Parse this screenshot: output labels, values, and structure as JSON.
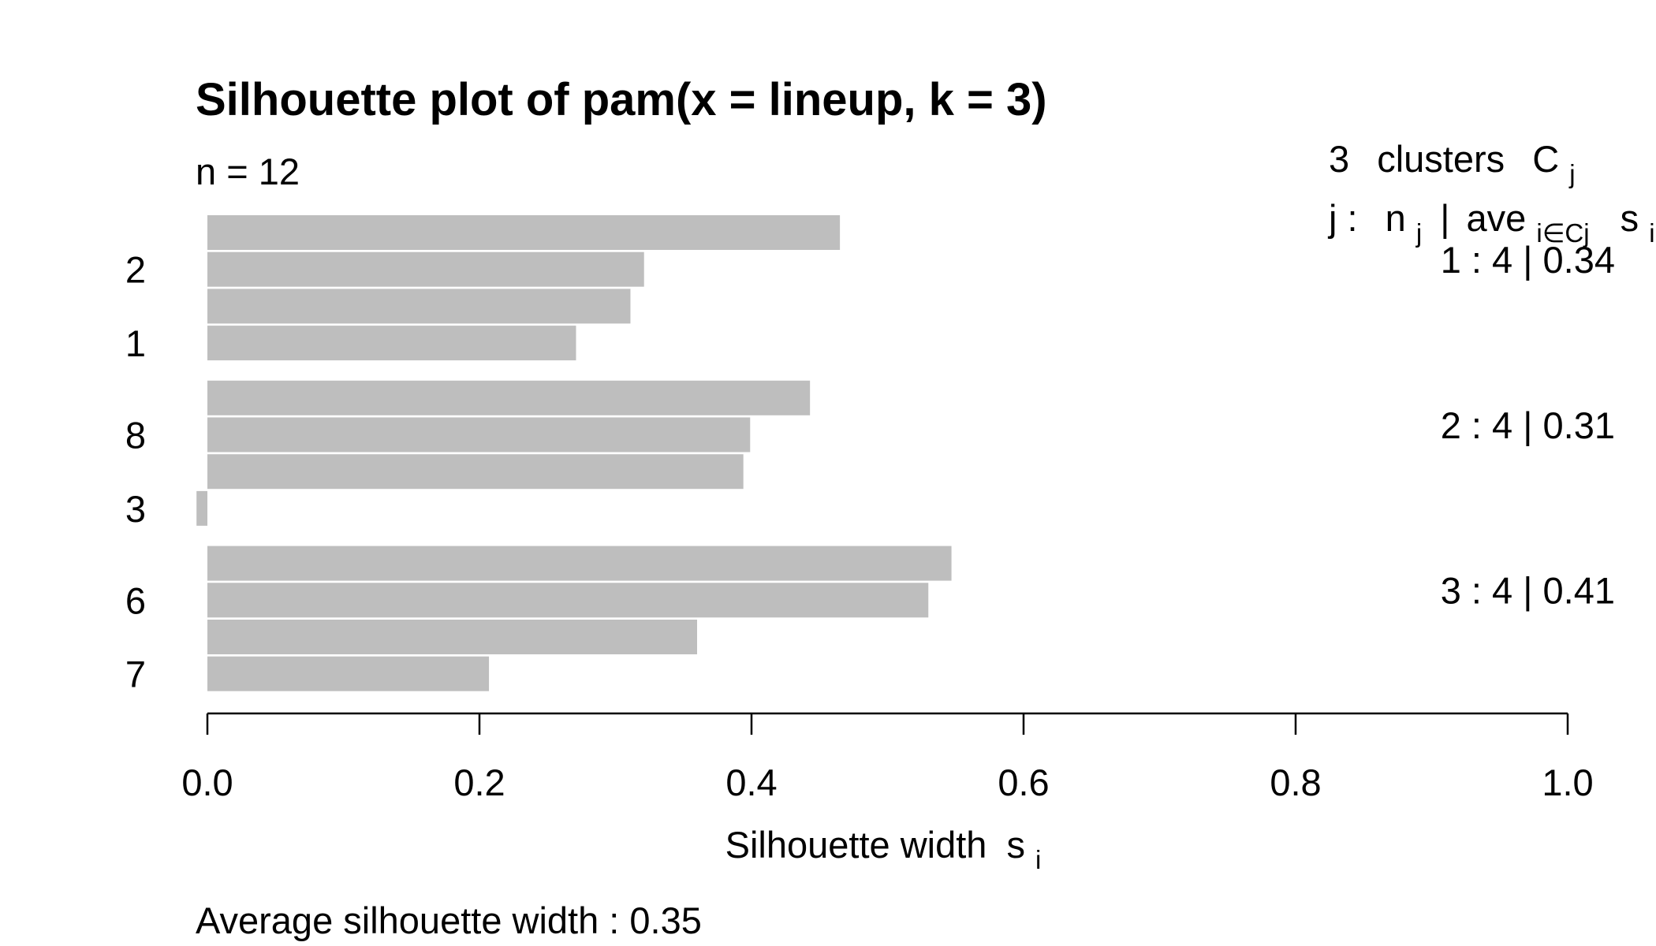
{
  "chart_data": {
    "type": "bar",
    "orientation": "horizontal",
    "title": "Silhouette plot of pam(x = lineup, k = 3)",
    "n_label": "n = 12",
    "xlabel": "Silhouette width",
    "xlabel_subscript": "i",
    "xlabel_symbol": "s",
    "xlim": [
      0,
      1
    ],
    "x_ticks": [
      0.0,
      0.2,
      0.4,
      0.6,
      0.8,
      1.0
    ],
    "x_tick_labels": [
      "0.0",
      "0.2",
      "0.4",
      "0.6",
      "0.8",
      "1.0"
    ],
    "bar_color": "#bebebe",
    "values": [
      0.465,
      0.321,
      0.311,
      0.271,
      0.443,
      0.399,
      0.394,
      -0.008,
      0.547,
      0.53,
      0.36,
      0.207
    ],
    "row_labels": [
      "",
      "2",
      "",
      "1",
      "",
      "8",
      "",
      "3",
      "",
      "6",
      "",
      "7"
    ],
    "clusters": [
      {
        "id": "1",
        "size": "4",
        "avg": "0.34"
      },
      {
        "id": "2",
        "size": "4",
        "avg": "0.31"
      },
      {
        "id": "3",
        "size": "4",
        "avg": "0.41"
      }
    ],
    "legend": {
      "header_count": "3",
      "header_text": "clusters",
      "header_symbol": "C",
      "header_symbol_sub": "j",
      "row_j": "j :",
      "row_n": "n",
      "row_n_sub": "j",
      "row_sep": "|",
      "row_ave": "ave",
      "row_ave_sub": "i∈Cj",
      "row_s": "s",
      "row_s_sub": "i"
    },
    "footer": "Average silhouette width :  0.35"
  }
}
